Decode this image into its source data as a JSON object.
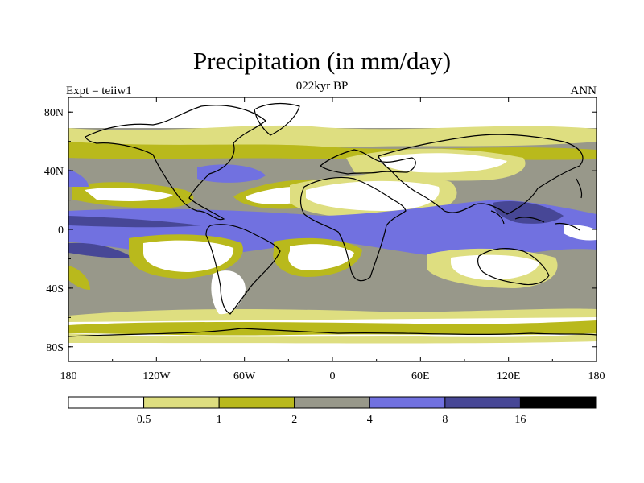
{
  "title": "Precipitation (in mm/day)",
  "subtitle": "022kyr BP",
  "left_label": "Expt = teiiw1",
  "right_label": "ANN",
  "lat_labels": [
    {
      "text": "80N",
      "lat": 80
    },
    {
      "text": "40N",
      "lat": 40
    },
    {
      "text": "0",
      "lat": 0
    },
    {
      "text": "40S",
      "lat": -40
    },
    {
      "text": "80S",
      "lat": -80
    }
  ],
  "lon_labels": [
    {
      "text": "180",
      "lon": -180
    },
    {
      "text": "120W",
      "lon": -120
    },
    {
      "text": "60W",
      "lon": -60
    },
    {
      "text": "0",
      "lon": 0
    },
    {
      "text": "60E",
      "lon": 60
    },
    {
      "text": "120E",
      "lon": 120
    },
    {
      "text": "180",
      "lon": 180
    }
  ],
  "colorbar": {
    "colors": [
      "#ffffff",
      "#dede80",
      "#b9b91c",
      "#98988a",
      "#7171e0",
      "#474796",
      "#000000"
    ],
    "labels": [
      "0.5",
      "1",
      "2",
      "4",
      "8",
      "16"
    ]
  }
}
